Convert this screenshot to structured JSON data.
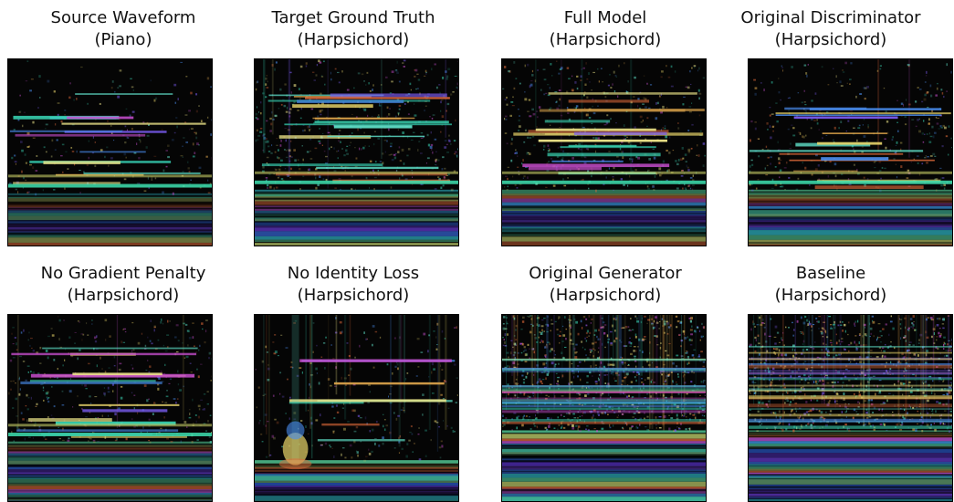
{
  "panels": [
    {
      "title": "Source Waveform",
      "subtitle": "(Piano)",
      "style": "source"
    },
    {
      "title": "Target Ground Truth",
      "subtitle": "(Harpsichord)",
      "style": "target"
    },
    {
      "title": "Full Model",
      "subtitle": "(Harpsichord)",
      "style": "full"
    },
    {
      "title": "Original Discriminator",
      "subtitle": "(Harpsichord)",
      "style": "discriminator"
    },
    {
      "title": "No Gradient Penalty",
      "subtitle": "(Harpsichord)",
      "style": "nogp"
    },
    {
      "title": "No Identity Loss",
      "subtitle": "(Harpsichord)",
      "style": "noid"
    },
    {
      "title": "Original Generator",
      "subtitle": "(Harpsichord)",
      "style": "generator"
    },
    {
      "title": "Baseline",
      "subtitle": "(Harpsichord)",
      "style": "baseline"
    }
  ]
}
